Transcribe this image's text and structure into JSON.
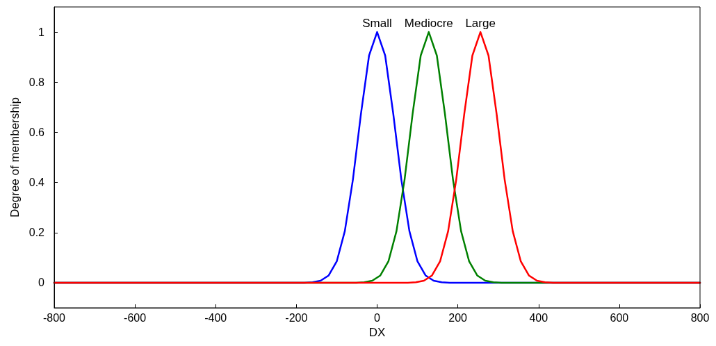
{
  "chart_data": {
    "type": "line",
    "xlabel": "DX",
    "ylabel": "Degree of membership",
    "xlim": [
      -800,
      800
    ],
    "xticks": [
      -800,
      -600,
      -400,
      -200,
      0,
      200,
      400,
      600,
      800
    ],
    "ylim": [
      -0.1,
      1.1
    ],
    "yticks": [
      0,
      0.2,
      0.4,
      0.6,
      0.8,
      1
    ],
    "grid": false,
    "legend": false,
    "marker": "none",
    "line_style": "solid",
    "series": [
      {
        "name": "Small",
        "color": "#0000ff",
        "x": [
          -800,
          -180,
          -160,
          -140,
          -120,
          -100,
          -80,
          -60,
          -40,
          -20,
          0,
          20,
          40,
          60,
          80,
          100,
          120,
          140,
          160,
          180,
          800
        ],
        "values": [
          0,
          0,
          0.002,
          0.008,
          0.029,
          0.085,
          0.206,
          0.411,
          0.674,
          0.906,
          1,
          0.906,
          0.674,
          0.411,
          0.206,
          0.085,
          0.029,
          0.008,
          0.002,
          0,
          0
        ]
      },
      {
        "name": "Mediocre",
        "color": "#008000",
        "x": [
          -800,
          -52,
          -32,
          -12,
          8,
          28,
          48,
          68,
          88,
          108,
          128,
          148,
          168,
          188,
          208,
          228,
          248,
          268,
          288,
          308,
          800
        ],
        "values": [
          0,
          0,
          0.002,
          0.008,
          0.029,
          0.085,
          0.206,
          0.411,
          0.674,
          0.906,
          1,
          0.906,
          0.674,
          0.411,
          0.206,
          0.085,
          0.029,
          0.008,
          0.002,
          0,
          0
        ]
      },
      {
        "name": "Large",
        "color": "#ff0000",
        "x": [
          -800,
          76,
          96,
          116,
          136,
          156,
          176,
          196,
          216,
          236,
          256,
          276,
          296,
          316,
          336,
          356,
          376,
          396,
          416,
          436,
          800
        ],
        "values": [
          0,
          0,
          0.002,
          0.008,
          0.029,
          0.085,
          0.206,
          0.411,
          0.674,
          0.906,
          1,
          0.906,
          0.674,
          0.411,
          0.206,
          0.085,
          0.029,
          0.008,
          0.002,
          0,
          0
        ]
      }
    ]
  }
}
